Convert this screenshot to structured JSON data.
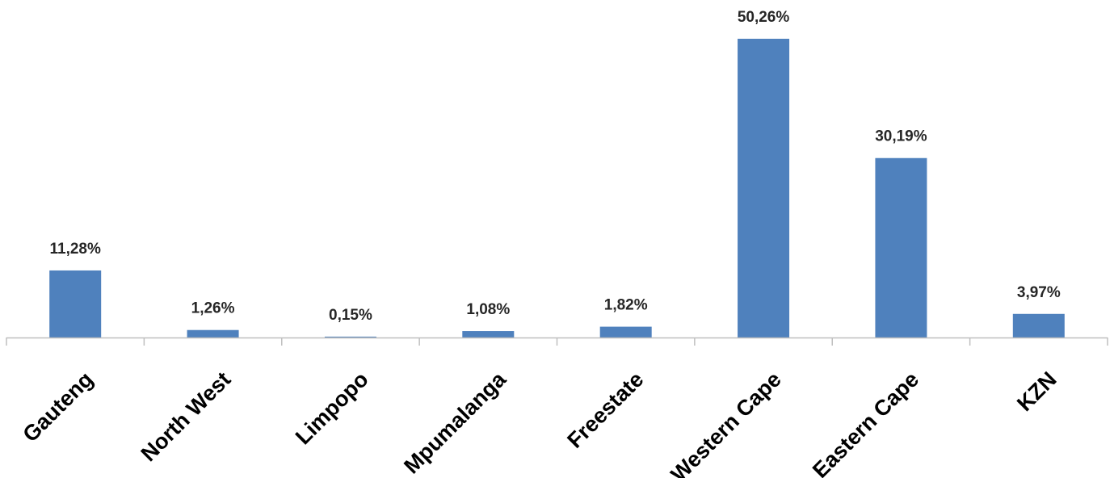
{
  "chart_data": {
    "type": "bar",
    "categories": [
      "Gauteng",
      "North West",
      "Limpopo",
      "Mpumalanga",
      "Freestate",
      "Western Cape",
      "Eastern Cape",
      "KZN"
    ],
    "values": [
      11.28,
      1.26,
      0.15,
      1.08,
      1.82,
      50.26,
      30.19,
      3.97
    ],
    "data_labels": [
      "11,28%",
      "1,26%",
      "0,15%",
      "1,08%",
      "1,82%",
      "50,26%",
      "30,19%",
      "3,97%"
    ],
    "title": "",
    "xlabel": "",
    "ylabel": "",
    "ylim": [
      0,
      50.26
    ],
    "grid": false,
    "legend": "none",
    "colors": {
      "bar": "#4f81bd",
      "axis": "#bfbfbf",
      "label": "#262626"
    }
  }
}
